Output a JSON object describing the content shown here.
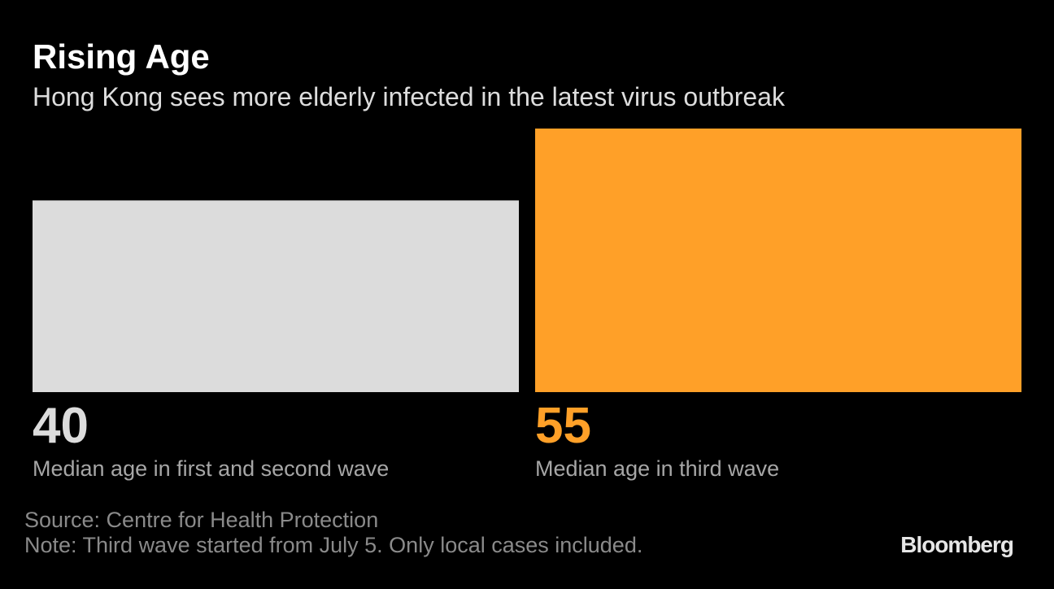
{
  "chart_data": {
    "type": "bar",
    "title": "Rising Age",
    "subtitle": "Hong Kong sees more elderly infected in the latest virus outbreak",
    "categories": [
      "Median age in first and second wave",
      "Median age in third wave"
    ],
    "values": [
      40,
      55
    ],
    "colors": [
      "#dcdcdc",
      "#ffa028"
    ],
    "source": "Source: Centre for Health Protection",
    "note": "Note: Third wave started from July 5. Only local cases included.",
    "brand": "Bloomberg"
  }
}
